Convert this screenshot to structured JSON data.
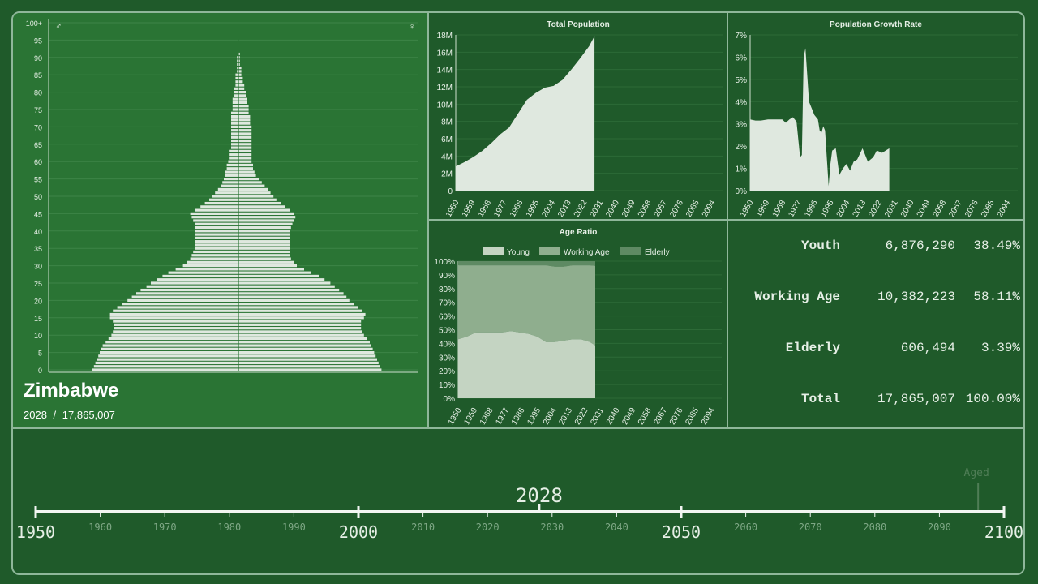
{
  "country": "Zimbabwe",
  "year": "2028",
  "separator": "/",
  "total_population": "17,865,007",
  "symbols": {
    "male": "♂",
    "female": "♀"
  },
  "stats": [
    {
      "label": "Youth",
      "count": "6,876,290",
      "percent": "38.49%"
    },
    {
      "label": "Working Age",
      "count": "10,382,223",
      "percent": "58.11%"
    },
    {
      "label": "Elderly",
      "count": "606,494",
      "percent": "3.39%"
    },
    {
      "label": "Total",
      "count": "17,865,007",
      "percent": "100.00%"
    }
  ],
  "timeline": {
    "current": "2028",
    "current_value": 2028,
    "range": [
      1950,
      2100
    ],
    "major_ticks": [
      "1950",
      "2000",
      "2050",
      "2100"
    ],
    "minor_ticks": [
      "1960",
      "1970",
      "1980",
      "1990",
      "2010",
      "2020",
      "2030",
      "2040",
      "2060",
      "2070",
      "2080",
      "2090"
    ],
    "marker_label": "Aged",
    "marker_year": 2096
  },
  "colors": {
    "background": "#1f5a2a",
    "pyramid_panel": "#2a7434",
    "border": "#8fb79a",
    "fill": "#dfe8df",
    "young": "#c4d4c2",
    "working": "#8fae8e",
    "elderly": "#5e8a63"
  },
  "chart_data": [
    {
      "type": "bar",
      "title": "",
      "subtype": "population-pyramid",
      "y_tick_labels": [
        "0",
        "5",
        "10",
        "15",
        "20",
        "25",
        "30",
        "35",
        "40",
        "45",
        "50",
        "55",
        "60",
        "65",
        "70",
        "75",
        "80",
        "85",
        "90",
        "95",
        "100+"
      ],
      "age_groups_single_year": true,
      "male_relative": [
        1.0,
        0.99,
        0.98,
        0.97,
        0.96,
        0.95,
        0.94,
        0.93,
        0.91,
        0.89,
        0.87,
        0.86,
        0.85,
        0.85,
        0.86,
        0.88,
        0.88,
        0.86,
        0.83,
        0.8,
        0.76,
        0.73,
        0.7,
        0.67,
        0.63,
        0.6,
        0.56,
        0.52,
        0.48,
        0.43,
        0.38,
        0.35,
        0.33,
        0.32,
        0.31,
        0.3,
        0.3,
        0.3,
        0.3,
        0.3,
        0.3,
        0.3,
        0.3,
        0.31,
        0.32,
        0.33,
        0.3,
        0.26,
        0.23,
        0.2,
        0.18,
        0.16,
        0.14,
        0.12,
        0.11,
        0.1,
        0.09,
        0.09,
        0.08,
        0.08,
        0.07,
        0.06,
        0.06,
        0.06,
        0.05,
        0.05,
        0.05,
        0.05,
        0.05,
        0.05,
        0.05,
        0.05,
        0.05,
        0.05,
        0.05,
        0.04,
        0.04,
        0.04,
        0.04,
        0.03,
        0.03,
        0.03,
        0.02,
        0.02,
        0.02,
        0.02,
        0.01,
        0.01,
        0.01,
        0.01,
        0.01,
        0.0,
        0.0,
        0.0,
        0.0,
        0.0,
        0.0,
        0.0,
        0.0,
        0.0,
        0.0
      ],
      "female_relative": [
        0.98,
        0.97,
        0.96,
        0.95,
        0.94,
        0.93,
        0.92,
        0.91,
        0.9,
        0.88,
        0.86,
        0.85,
        0.84,
        0.84,
        0.84,
        0.86,
        0.87,
        0.85,
        0.82,
        0.79,
        0.76,
        0.74,
        0.72,
        0.69,
        0.66,
        0.63,
        0.59,
        0.55,
        0.5,
        0.45,
        0.4,
        0.38,
        0.36,
        0.35,
        0.35,
        0.35,
        0.35,
        0.35,
        0.35,
        0.35,
        0.35,
        0.36,
        0.37,
        0.38,
        0.39,
        0.38,
        0.35,
        0.32,
        0.29,
        0.26,
        0.24,
        0.22,
        0.2,
        0.18,
        0.16,
        0.14,
        0.12,
        0.11,
        0.1,
        0.1,
        0.09,
        0.09,
        0.09,
        0.09,
        0.09,
        0.09,
        0.09,
        0.09,
        0.09,
        0.09,
        0.09,
        0.08,
        0.08,
        0.08,
        0.07,
        0.07,
        0.07,
        0.06,
        0.06,
        0.05,
        0.05,
        0.04,
        0.04,
        0.03,
        0.03,
        0.02,
        0.02,
        0.02,
        0.01,
        0.01,
        0.01,
        0.01,
        0.0,
        0.0,
        0.0,
        0.0,
        0.0,
        0.0,
        0.0,
        0.0,
        0.0
      ]
    },
    {
      "type": "area",
      "title": "Total Population",
      "x_ticks": [
        "1950",
        "1959",
        "1968",
        "1977",
        "1986",
        "1995",
        "2004",
        "2013",
        "2022",
        "2031",
        "2040",
        "2049",
        "2058",
        "2067",
        "2076",
        "2085",
        "2094"
      ],
      "y_ticks": [
        "0",
        "2M",
        "4M",
        "6M",
        "8M",
        "10M",
        "12M",
        "14M",
        "16M",
        "18M"
      ],
      "xlim": [
        1950,
        2100
      ],
      "ylim": [
        0,
        18000000
      ],
      "x": [
        1950,
        1955,
        1960,
        1965,
        1970,
        1975,
        1980,
        1985,
        1990,
        1995,
        2000,
        2005,
        2010,
        2015,
        2020,
        2025,
        2028
      ],
      "y": [
        2800000,
        3300000,
        3900000,
        4600000,
        5500000,
        6500000,
        7300000,
        8900000,
        10500000,
        11300000,
        11900000,
        12100000,
        12800000,
        14000000,
        15300000,
        16700000,
        17865007
      ]
    },
    {
      "type": "area",
      "title": "Population Growth Rate",
      "x_ticks": [
        "1950",
        "1959",
        "1968",
        "1977",
        "1986",
        "1995",
        "2004",
        "2013",
        "2022",
        "2031",
        "2040",
        "2049",
        "2058",
        "2067",
        "2076",
        "2085",
        "2094"
      ],
      "y_ticks": [
        "0%",
        "1%",
        "2%",
        "3%",
        "4%",
        "5%",
        "6%",
        "7%"
      ],
      "xlim": [
        1950,
        2100
      ],
      "ylim": [
        0,
        7
      ],
      "x": [
        1950,
        1953,
        1956,
        1960,
        1964,
        1968,
        1970,
        1972,
        1974,
        1976,
        1977,
        1978,
        1979,
        1980,
        1981,
        1983,
        1985,
        1986,
        1988,
        1989,
        1990,
        1991,
        1992,
        1994,
        1995,
        1996,
        1998,
        2000,
        2002,
        2004,
        2006,
        2008,
        2010,
        2013,
        2016,
        2019,
        2021,
        2024,
        2028
      ],
      "y": [
        3.2,
        3.15,
        3.15,
        3.2,
        3.2,
        3.2,
        3.05,
        3.2,
        3.3,
        3.1,
        2.3,
        1.5,
        1.6,
        6.0,
        6.4,
        4.0,
        3.6,
        3.4,
        3.2,
        2.7,
        2.6,
        2.9,
        2.7,
        0.2,
        1.2,
        1.8,
        1.9,
        0.7,
        1.0,
        1.2,
        0.9,
        1.3,
        1.4,
        1.9,
        1.3,
        1.5,
        1.8,
        1.7,
        1.9
      ]
    },
    {
      "type": "area",
      "title": "Age Ratio",
      "stacked": true,
      "legend": [
        "Young",
        "Working Age",
        "Elderly"
      ],
      "legend_position": "top",
      "x_ticks": [
        "1950",
        "1959",
        "1968",
        "1977",
        "1986",
        "1995",
        "2004",
        "2013",
        "2022",
        "2031",
        "2040",
        "2049",
        "2058",
        "2067",
        "2076",
        "2085",
        "2094"
      ],
      "y_ticks": [
        "0%",
        "10%",
        "20%",
        "30%",
        "40%",
        "50%",
        "60%",
        "70%",
        "80%",
        "90%",
        "100%"
      ],
      "xlim": [
        1950,
        2100
      ],
      "ylim": [
        0,
        100
      ],
      "x": [
        1950,
        1955,
        1960,
        1965,
        1970,
        1975,
        1980,
        1985,
        1990,
        1995,
        2000,
        2005,
        2010,
        2015,
        2020,
        2025,
        2028
      ],
      "series": [
        {
          "name": "Young",
          "values": [
            43,
            45,
            48,
            48,
            48,
            48,
            49,
            48,
            47,
            45,
            41,
            41,
            42,
            43,
            43,
            41,
            38.5
          ]
        },
        {
          "name": "Working Age",
          "values": [
            54,
            52,
            49,
            49,
            49,
            49,
            48,
            49,
            50,
            52,
            56,
            55,
            54,
            54,
            54,
            56,
            58.1
          ]
        },
        {
          "name": "Elderly",
          "values": [
            3,
            3,
            3,
            3,
            3,
            3,
            3,
            3,
            3,
            3,
            3,
            4,
            4,
            3,
            3,
            3,
            3.4
          ]
        }
      ]
    }
  ]
}
